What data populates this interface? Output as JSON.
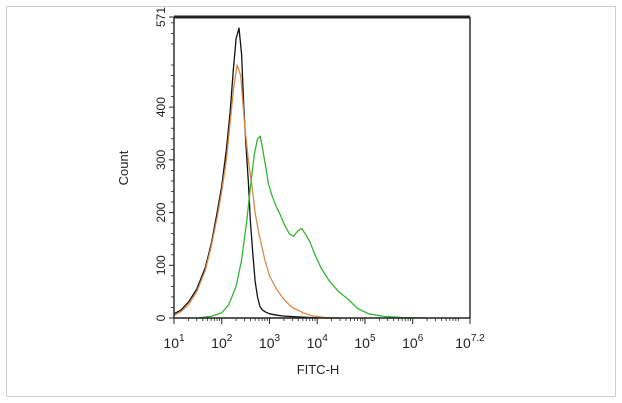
{
  "chart_data": {
    "type": "line",
    "title": "",
    "xlabel": "FITC-H",
    "ylabel": "Count",
    "xscale": "log",
    "xlim": [
      10,
      15848931.92
    ],
    "ylim": [
      0,
      571
    ],
    "grid": false,
    "x_ticks": [
      {
        "base": "10",
        "exp": "1",
        "value": 10
      },
      {
        "base": "10",
        "exp": "2",
        "value": 100
      },
      {
        "base": "10",
        "exp": "3",
        "value": 1000
      },
      {
        "base": "10",
        "exp": "4",
        "value": 10000
      },
      {
        "base": "10",
        "exp": "5",
        "value": 100000
      },
      {
        "base": "10",
        "exp": "6",
        "value": 1000000
      },
      {
        "base": "10",
        "exp": "7.2",
        "value": 15848931.92
      }
    ],
    "y_ticks": [
      {
        "label": "0",
        "value": 0
      },
      {
        "label": "100",
        "value": 100
      },
      {
        "label": "200",
        "value": 200
      },
      {
        "label": "300",
        "value": 300
      },
      {
        "label": "400",
        "value": 400
      },
      {
        "label": "571",
        "value": 571
      }
    ],
    "series": [
      {
        "color": "#111111",
        "x": [
          10,
          14,
          20,
          30,
          45,
          60,
          80,
          100,
          125,
          150,
          175,
          200,
          230,
          260,
          290,
          320,
          360,
          400,
          450,
          500,
          560,
          630,
          700,
          800,
          1000,
          1300,
          1800,
          2500,
          4000,
          7000,
          15000,
          30000
        ],
        "y": [
          8,
          15,
          30,
          55,
          95,
          140,
          200,
          250,
          320,
          390,
          470,
          530,
          550,
          500,
          400,
          330,
          260,
          180,
          120,
          70,
          40,
          22,
          16,
          12,
          8,
          6,
          4,
          3,
          2,
          1,
          0,
          0
        ]
      },
      {
        "color": "#d98a4a",
        "x": [
          10,
          14,
          20,
          30,
          45,
          60,
          80,
          100,
          125,
          150,
          180,
          210,
          250,
          300,
          360,
          430,
          500,
          600,
          800,
          1000,
          1400,
          2000,
          3000,
          5000,
          8000,
          15000,
          30000
        ],
        "y": [
          5,
          12,
          25,
          50,
          90,
          135,
          190,
          240,
          300,
          370,
          440,
          480,
          460,
          370,
          300,
          250,
          200,
          160,
          110,
          80,
          55,
          35,
          20,
          10,
          4,
          1,
          0
        ]
      },
      {
        "color": "#33b533",
        "x": [
          30,
          60,
          100,
          140,
          200,
          260,
          330,
          400,
          480,
          560,
          640,
          720,
          820,
          950,
          1150,
          1400,
          1700,
          2100,
          2600,
          3200,
          3900,
          4700,
          5600,
          7000,
          9000,
          12000,
          18000,
          28000,
          45000,
          70000,
          120000,
          250000,
          600000,
          2000000
        ],
        "y": [
          0,
          3,
          10,
          25,
          60,
          110,
          180,
          250,
          310,
          340,
          345,
          320,
          290,
          255,
          230,
          210,
          195,
          175,
          160,
          155,
          165,
          170,
          160,
          145,
          120,
          95,
          70,
          50,
          35,
          18,
          8,
          3,
          1,
          0
        ]
      }
    ]
  }
}
